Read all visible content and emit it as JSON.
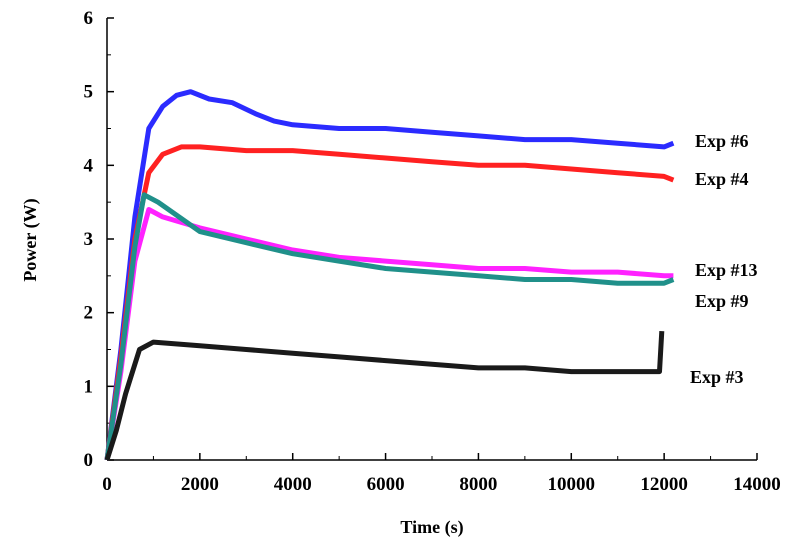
{
  "chart_data": {
    "type": "line",
    "x_label": "Time (s)",
    "y_label": "Power (W)",
    "xlim": [
      0,
      14000
    ],
    "xticks": [
      0,
      2000,
      4000,
      6000,
      8000,
      10000,
      12000,
      14000
    ],
    "ylim": [
      0,
      6
    ],
    "yticks": [
      0,
      1,
      2,
      3,
      4,
      5,
      6
    ],
    "series": [
      {
        "name": "Exp #6",
        "color": "#2b2bff",
        "x": [
          0,
          300,
          600,
          900,
          1200,
          1500,
          1800,
          2200,
          2700,
          3200,
          3600,
          4000,
          5000,
          6000,
          7000,
          8000,
          9000,
          10000,
          11000,
          12000,
          12200
        ],
        "values": [
          0,
          1.5,
          3.3,
          4.5,
          4.8,
          4.95,
          5.0,
          4.9,
          4.85,
          4.7,
          4.6,
          4.55,
          4.5,
          4.5,
          4.45,
          4.4,
          4.35,
          4.35,
          4.3,
          4.25,
          4.3
        ]
      },
      {
        "name": "Exp #4",
        "color": "#ff2121",
        "x": [
          0,
          300,
          600,
          900,
          1200,
          1600,
          2000,
          3000,
          4000,
          5000,
          6000,
          7000,
          8000,
          9000,
          10000,
          11000,
          12000,
          12200
        ],
        "values": [
          0,
          1.4,
          3.0,
          3.9,
          4.15,
          4.25,
          4.25,
          4.2,
          4.2,
          4.15,
          4.1,
          4.05,
          4.0,
          4.0,
          3.95,
          3.9,
          3.85,
          3.8
        ]
      },
      {
        "name": "Exp #13",
        "color": "#ff22ff",
        "x": [
          0,
          300,
          600,
          900,
          1200,
          2000,
          3000,
          4000,
          5000,
          6000,
          7000,
          8000,
          9000,
          10000,
          11000,
          12000,
          12200
        ],
        "values": [
          0,
          1.2,
          2.7,
          3.4,
          3.3,
          3.15,
          3.0,
          2.85,
          2.75,
          2.7,
          2.65,
          2.6,
          2.6,
          2.55,
          2.55,
          2.5,
          2.5
        ]
      },
      {
        "name": "Exp #9",
        "color": "#20908a",
        "x": [
          0,
          300,
          600,
          800,
          1100,
          2000,
          3000,
          4000,
          5000,
          6000,
          7000,
          8000,
          9000,
          10000,
          11000,
          12000,
          12200
        ],
        "values": [
          0,
          1.3,
          2.9,
          3.6,
          3.5,
          3.1,
          2.95,
          2.8,
          2.7,
          2.6,
          2.55,
          2.5,
          2.45,
          2.45,
          2.4,
          2.4,
          2.45
        ]
      },
      {
        "name": "Exp #3",
        "color": "#1a1a1a",
        "x": [
          0,
          200,
          400,
          700,
          1000,
          2000,
          3000,
          4000,
          5000,
          6000,
          7000,
          8000,
          9000,
          10000,
          11000,
          11900,
          11950
        ],
        "values": [
          0,
          0.4,
          0.9,
          1.5,
          1.6,
          1.55,
          1.5,
          1.45,
          1.4,
          1.35,
          1.3,
          1.25,
          1.25,
          1.2,
          1.2,
          1.2,
          1.75
        ]
      }
    ]
  }
}
